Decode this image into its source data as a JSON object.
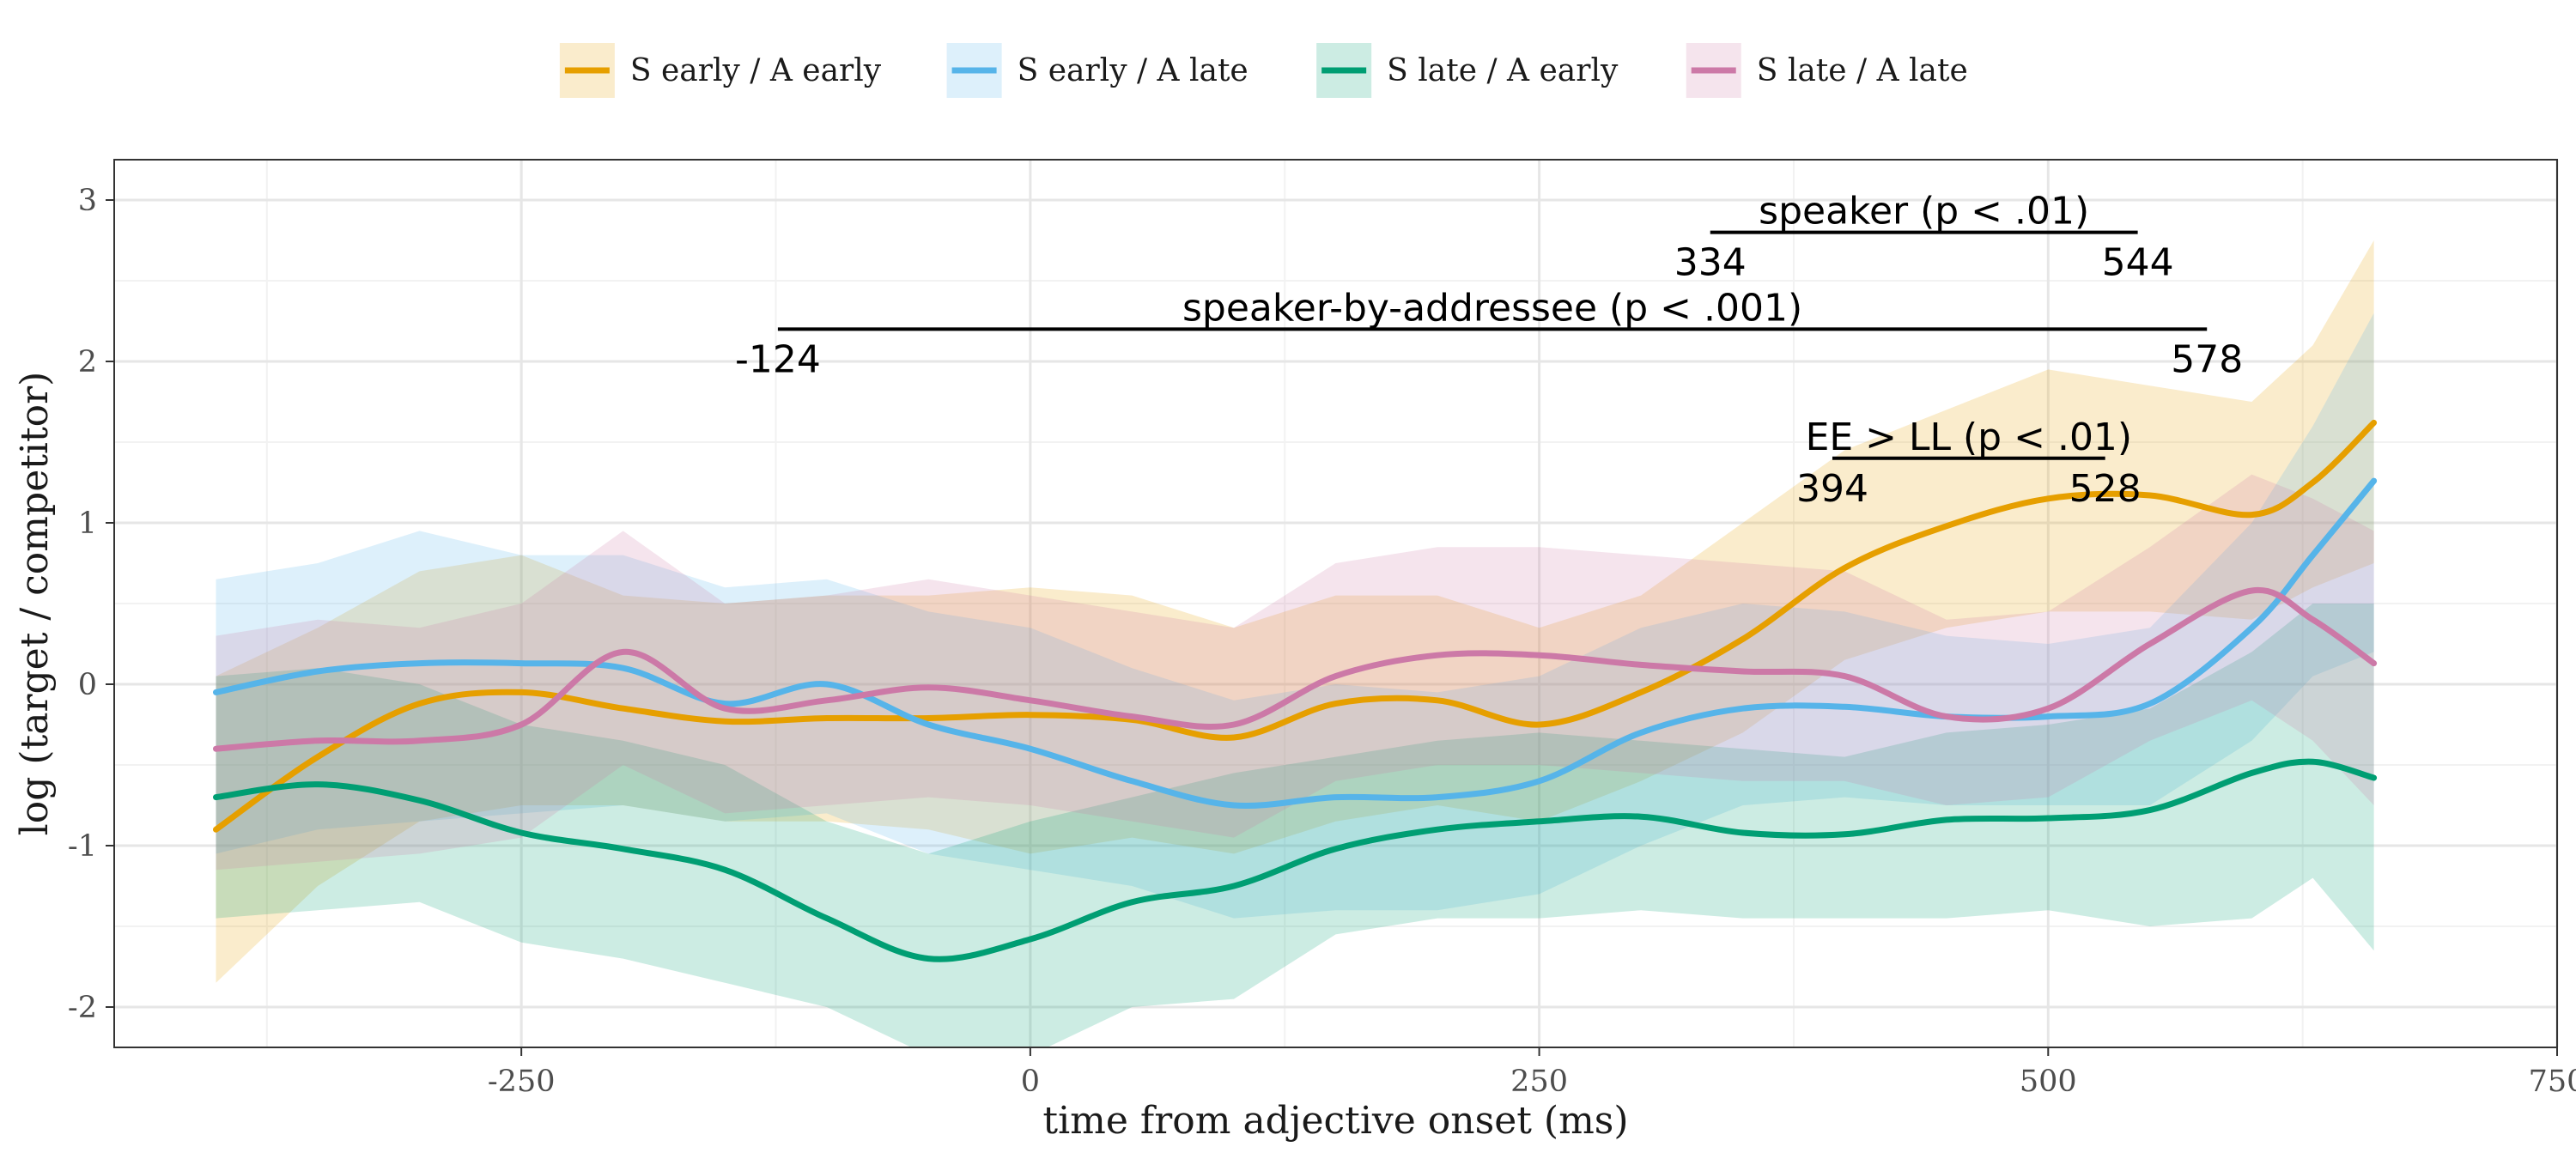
{
  "chart_data": {
    "type": "line",
    "xlabel": "time from adjective onset (ms)",
    "ylabel": "log (target / competitor)",
    "xlim": [
      -450,
      750
    ],
    "ylim": [
      -2.25,
      3.25
    ],
    "xticks": [
      -250,
      0,
      250,
      500,
      750
    ],
    "xtick_labels": [
      "-250",
      "0",
      "250",
      "500",
      "750"
    ],
    "yticks": [
      -2,
      -1,
      0,
      1,
      2,
      3
    ],
    "ytick_labels": [
      "-2",
      "-1",
      "0",
      "1",
      "2",
      "3"
    ],
    "grid": true,
    "legend_position": "top",
    "x": [
      -400,
      -350,
      -300,
      -250,
      -200,
      -150,
      -100,
      -50,
      0,
      50,
      100,
      150,
      200,
      250,
      300,
      350,
      400,
      450,
      500,
      550,
      600,
      630,
      660
    ],
    "series": [
      {
        "name": "S early / A early",
        "color": "#E69F00",
        "values": [
          -0.9,
          -0.45,
          -0.12,
          -0.05,
          -0.15,
          -0.23,
          -0.21,
          -0.21,
          -0.19,
          -0.22,
          -0.33,
          -0.12,
          -0.1,
          -0.25,
          -0.05,
          0.28,
          0.72,
          0.98,
          1.15,
          1.17,
          1.05,
          1.25,
          1.62
        ],
        "lower": [
          -1.85,
          -1.25,
          -0.85,
          -0.75,
          -0.75,
          -0.85,
          -0.85,
          -0.9,
          -1.05,
          -0.95,
          -1.05,
          -0.85,
          -0.75,
          -0.85,
          -0.6,
          -0.3,
          0.15,
          0.35,
          0.45,
          0.45,
          0.4,
          0.6,
          0.75
        ],
        "upper": [
          0.05,
          0.35,
          0.7,
          0.8,
          0.55,
          0.5,
          0.55,
          0.55,
          0.6,
          0.55,
          0.35,
          0.55,
          0.55,
          0.35,
          0.55,
          1.0,
          1.45,
          1.7,
          1.95,
          1.85,
          1.75,
          2.1,
          2.75
        ]
      },
      {
        "name": "S early / A late",
        "color": "#56B4E9",
        "values": [
          -0.05,
          0.08,
          0.13,
          0.13,
          0.1,
          -0.12,
          0.0,
          -0.25,
          -0.4,
          -0.6,
          -0.75,
          -0.7,
          -0.7,
          -0.6,
          -0.3,
          -0.15,
          -0.14,
          -0.2,
          -0.2,
          -0.12,
          0.35,
          0.8,
          1.26
        ],
        "lower": [
          -1.05,
          -0.9,
          -0.85,
          -0.8,
          -0.75,
          -0.85,
          -0.8,
          -1.05,
          -1.15,
          -1.25,
          -1.45,
          -1.4,
          -1.4,
          -1.3,
          -1.0,
          -0.75,
          -0.7,
          -0.75,
          -0.75,
          -0.75,
          -0.35,
          0.05,
          0.2
        ],
        "upper": [
          0.65,
          0.75,
          0.95,
          0.8,
          0.8,
          0.6,
          0.65,
          0.45,
          0.35,
          0.1,
          -0.1,
          0.0,
          -0.05,
          0.05,
          0.35,
          0.5,
          0.45,
          0.3,
          0.25,
          0.35,
          1.0,
          1.6,
          2.3
        ]
      },
      {
        "name": "S late / A early",
        "color": "#009E73",
        "values": [
          -0.7,
          -0.62,
          -0.72,
          -0.92,
          -1.02,
          -1.15,
          -1.45,
          -1.7,
          -1.58,
          -1.35,
          -1.25,
          -1.02,
          -0.9,
          -0.85,
          -0.82,
          -0.92,
          -0.93,
          -0.84,
          -0.83,
          -0.78,
          -0.55,
          -0.48,
          -0.58
        ],
        "lower": [
          -1.45,
          -1.4,
          -1.35,
          -1.6,
          -1.7,
          -1.85,
          -2.0,
          -2.3,
          -2.3,
          -2.0,
          -1.95,
          -1.55,
          -1.45,
          -1.45,
          -1.4,
          -1.45,
          -1.45,
          -1.45,
          -1.4,
          -1.5,
          -1.45,
          -1.2,
          -1.65
        ],
        "upper": [
          0.05,
          0.1,
          0.0,
          -0.25,
          -0.35,
          -0.5,
          -0.85,
          -1.05,
          -0.85,
          -0.7,
          -0.55,
          -0.45,
          -0.35,
          -0.3,
          -0.35,
          -0.4,
          -0.45,
          -0.3,
          -0.25,
          -0.15,
          0.2,
          0.5,
          0.5
        ]
      },
      {
        "name": "S late / A late",
        "color": "#CC79A7",
        "values": [
          -0.4,
          -0.35,
          -0.35,
          -0.25,
          0.2,
          -0.15,
          -0.1,
          -0.02,
          -0.1,
          -0.2,
          -0.25,
          0.05,
          0.18,
          0.18,
          0.12,
          0.08,
          0.05,
          -0.2,
          -0.15,
          0.25,
          0.58,
          0.4,
          0.13
        ],
        "lower": [
          -1.15,
          -1.1,
          -1.05,
          -0.95,
          -0.5,
          -0.8,
          -0.75,
          -0.7,
          -0.75,
          -0.85,
          -0.95,
          -0.6,
          -0.5,
          -0.5,
          -0.55,
          -0.6,
          -0.6,
          -0.75,
          -0.7,
          -0.35,
          -0.1,
          -0.35,
          -0.75
        ],
        "upper": [
          0.3,
          0.4,
          0.35,
          0.5,
          0.95,
          0.5,
          0.55,
          0.65,
          0.55,
          0.45,
          0.35,
          0.75,
          0.85,
          0.85,
          0.8,
          0.75,
          0.7,
          0.4,
          0.45,
          0.85,
          1.3,
          1.15,
          0.95
        ]
      }
    ],
    "annotations": [
      {
        "label": "speaker (p < .01)",
        "start": 334,
        "end": 544,
        "start_label": "334",
        "end_label": "544",
        "y": 2.8
      },
      {
        "label": "speaker-by-addressee (p < .001)",
        "start": -124,
        "end": 578,
        "start_label": "-124",
        "end_label": "578",
        "y": 2.2
      },
      {
        "label": "EE > LL (p < .01)",
        "start": 394,
        "end": 528,
        "start_label": "394",
        "end_label": "528",
        "y": 1.4
      }
    ]
  }
}
